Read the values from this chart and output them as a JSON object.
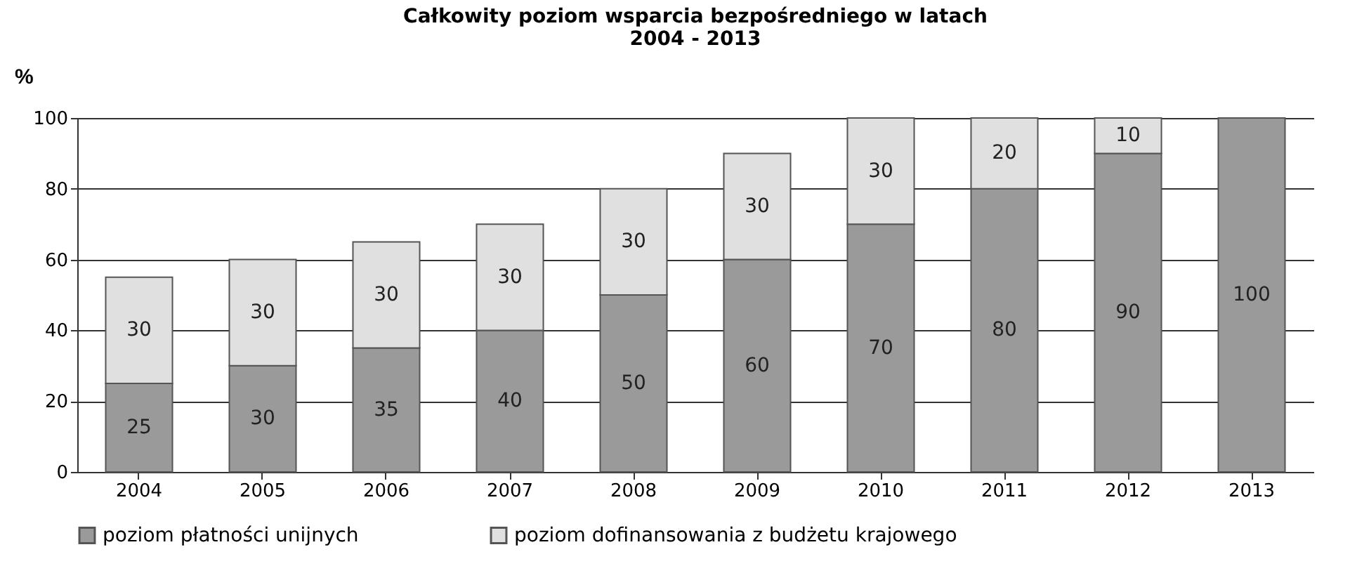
{
  "chart_data": {
    "type": "bar",
    "title": "Całkowity poziom wsparcia bezpośredniego w latach\n2004 - 2013",
    "ylabel": "%",
    "categories": [
      "2004",
      "2005",
      "2006",
      "2007",
      "2008",
      "2009",
      "2010",
      "2011",
      "2012",
      "2013"
    ],
    "series": [
      {
        "name": "poziom płatności unijnych",
        "color": "#9a9a9a",
        "values": [
          25,
          30,
          35,
          40,
          50,
          60,
          70,
          80,
          90,
          100
        ]
      },
      {
        "name": "poziom dofinansowania z budżetu krajowego",
        "color": "#e0e0e0",
        "values": [
          30,
          30,
          30,
          30,
          30,
          30,
          30,
          20,
          10,
          null
        ]
      }
    ],
    "stacked": true,
    "data_labels": true,
    "ylim": [
      0,
      100
    ],
    "yticks": [
      0,
      20,
      40,
      60,
      80,
      100
    ],
    "grid": "y",
    "legend": "bottom"
  }
}
